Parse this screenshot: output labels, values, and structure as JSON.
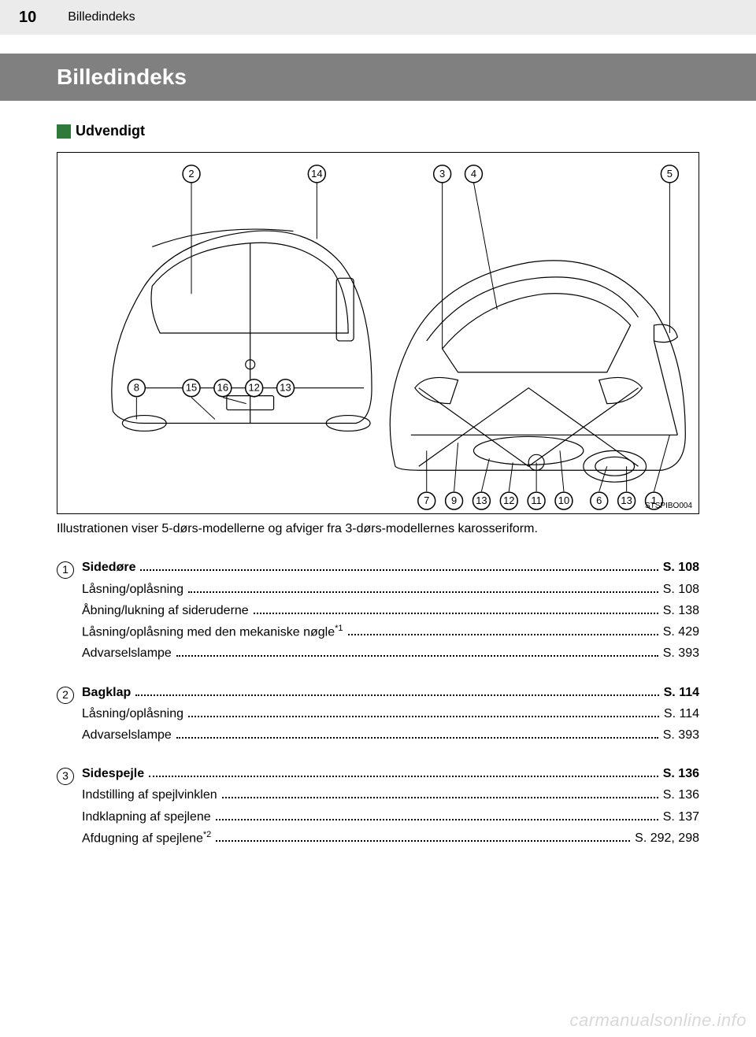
{
  "header": {
    "page_number": "10",
    "section": "Billedindeks"
  },
  "title": "Billedindeks",
  "subheading": "Udvendigt",
  "illustration": {
    "label": "STSPIBO004",
    "callouts_top": [
      "2",
      "14",
      "3",
      "4",
      "5"
    ],
    "callouts_mid": [
      "8",
      "15",
      "16",
      "12",
      "13"
    ],
    "callouts_bottom": [
      "7",
      "9",
      "13",
      "12",
      "11",
      "10",
      "6",
      "13",
      "1"
    ],
    "callout_style": {
      "radius": 11,
      "stroke": "#000000",
      "stroke_width": 1.5,
      "fill": "#ffffff",
      "font_size": 13
    },
    "line_color": "#000000",
    "line_width": 1.2
  },
  "caption": "Illustrationen viser 5-dørs-modellerne og afviger fra 3-dørs-modellernes karosseriform.",
  "index": [
    {
      "num": "1",
      "main": {
        "label": "Sidedøre",
        "page": "S. 108"
      },
      "subs": [
        {
          "label": "Låsning/oplåsning",
          "page": "S. 108"
        },
        {
          "label": "Åbning/lukning af sideruderne",
          "page": "S. 138"
        },
        {
          "label": "Låsning/oplåsning med den mekaniske nøgle",
          "sup": "*1",
          "page": "S. 429"
        },
        {
          "label": "Advarselslampe",
          "page": "S. 393"
        }
      ]
    },
    {
      "num": "2",
      "main": {
        "label": "Bagklap",
        "page": "S. 114"
      },
      "subs": [
        {
          "label": "Låsning/oplåsning",
          "page": "S. 114"
        },
        {
          "label": "Advarselslampe",
          "page": "S. 393"
        }
      ]
    },
    {
      "num": "3",
      "main": {
        "label": "Sidespejle",
        "page": "S. 136"
      },
      "subs": [
        {
          "label": "Indstilling af spejlvinklen",
          "page": "S. 136"
        },
        {
          "label": "Indklapning af spejlene",
          "page": "S. 137"
        },
        {
          "label": "Afdugning af spejlene",
          "sup": "*2",
          "page": "S. 292, 298"
        }
      ]
    }
  ],
  "watermark": "carmanualsonline.info",
  "colors": {
    "header_bg": "#ebebeb",
    "title_bg": "#808080",
    "title_fg": "#ffffff",
    "accent_square": "#2f7a3a",
    "text": "#000000",
    "watermark": "#d9d9d9"
  }
}
